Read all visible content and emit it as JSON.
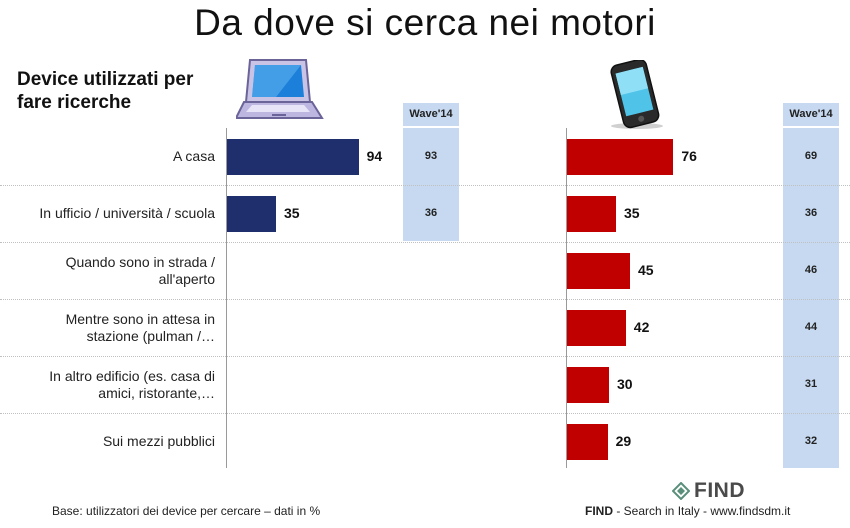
{
  "title": "Da dove si cerca nei motori",
  "subtitle": "Device utilizzati per fare ricerche",
  "wave_label": "Wave'14",
  "footer": {
    "base": "Base: utilizzatori dei device per cercare – dati in %",
    "brand": "FIND",
    "brand_rest": " - Search in Italy - www.findsdm.it",
    "logo": "FIND"
  },
  "colors": {
    "laptop": "#1f2f6d",
    "mobile": "#c00000",
    "wave_bg": "#c6d9f1"
  },
  "icons": {
    "laptop": "laptop-icon",
    "mobile": "smartphone-icon",
    "logo": "find-logo-icon"
  },
  "chart_data": {
    "type": "bar",
    "orientation": "horizontal",
    "categories": [
      "A casa",
      "In ufficio / università / scuola",
      "Quando sono in strada / all'aperto",
      "Mentre sono in attesa in stazione (pulman /…",
      "In altro edificio (es. casa di amici, ristorante,…",
      "Sui mezzi pubblici"
    ],
    "series": [
      {
        "device": "laptop",
        "values": [
          94,
          35,
          null,
          null,
          null,
          null
        ],
        "wave14": [
          93,
          36,
          null,
          null,
          null,
          null
        ]
      },
      {
        "device": "mobile",
        "values": [
          76,
          35,
          45,
          42,
          30,
          29
        ],
        "wave14": [
          69,
          36,
          46,
          44,
          31,
          32
        ]
      }
    ],
    "xlim": [
      0,
      100
    ],
    "grid": false,
    "legend": "none"
  }
}
